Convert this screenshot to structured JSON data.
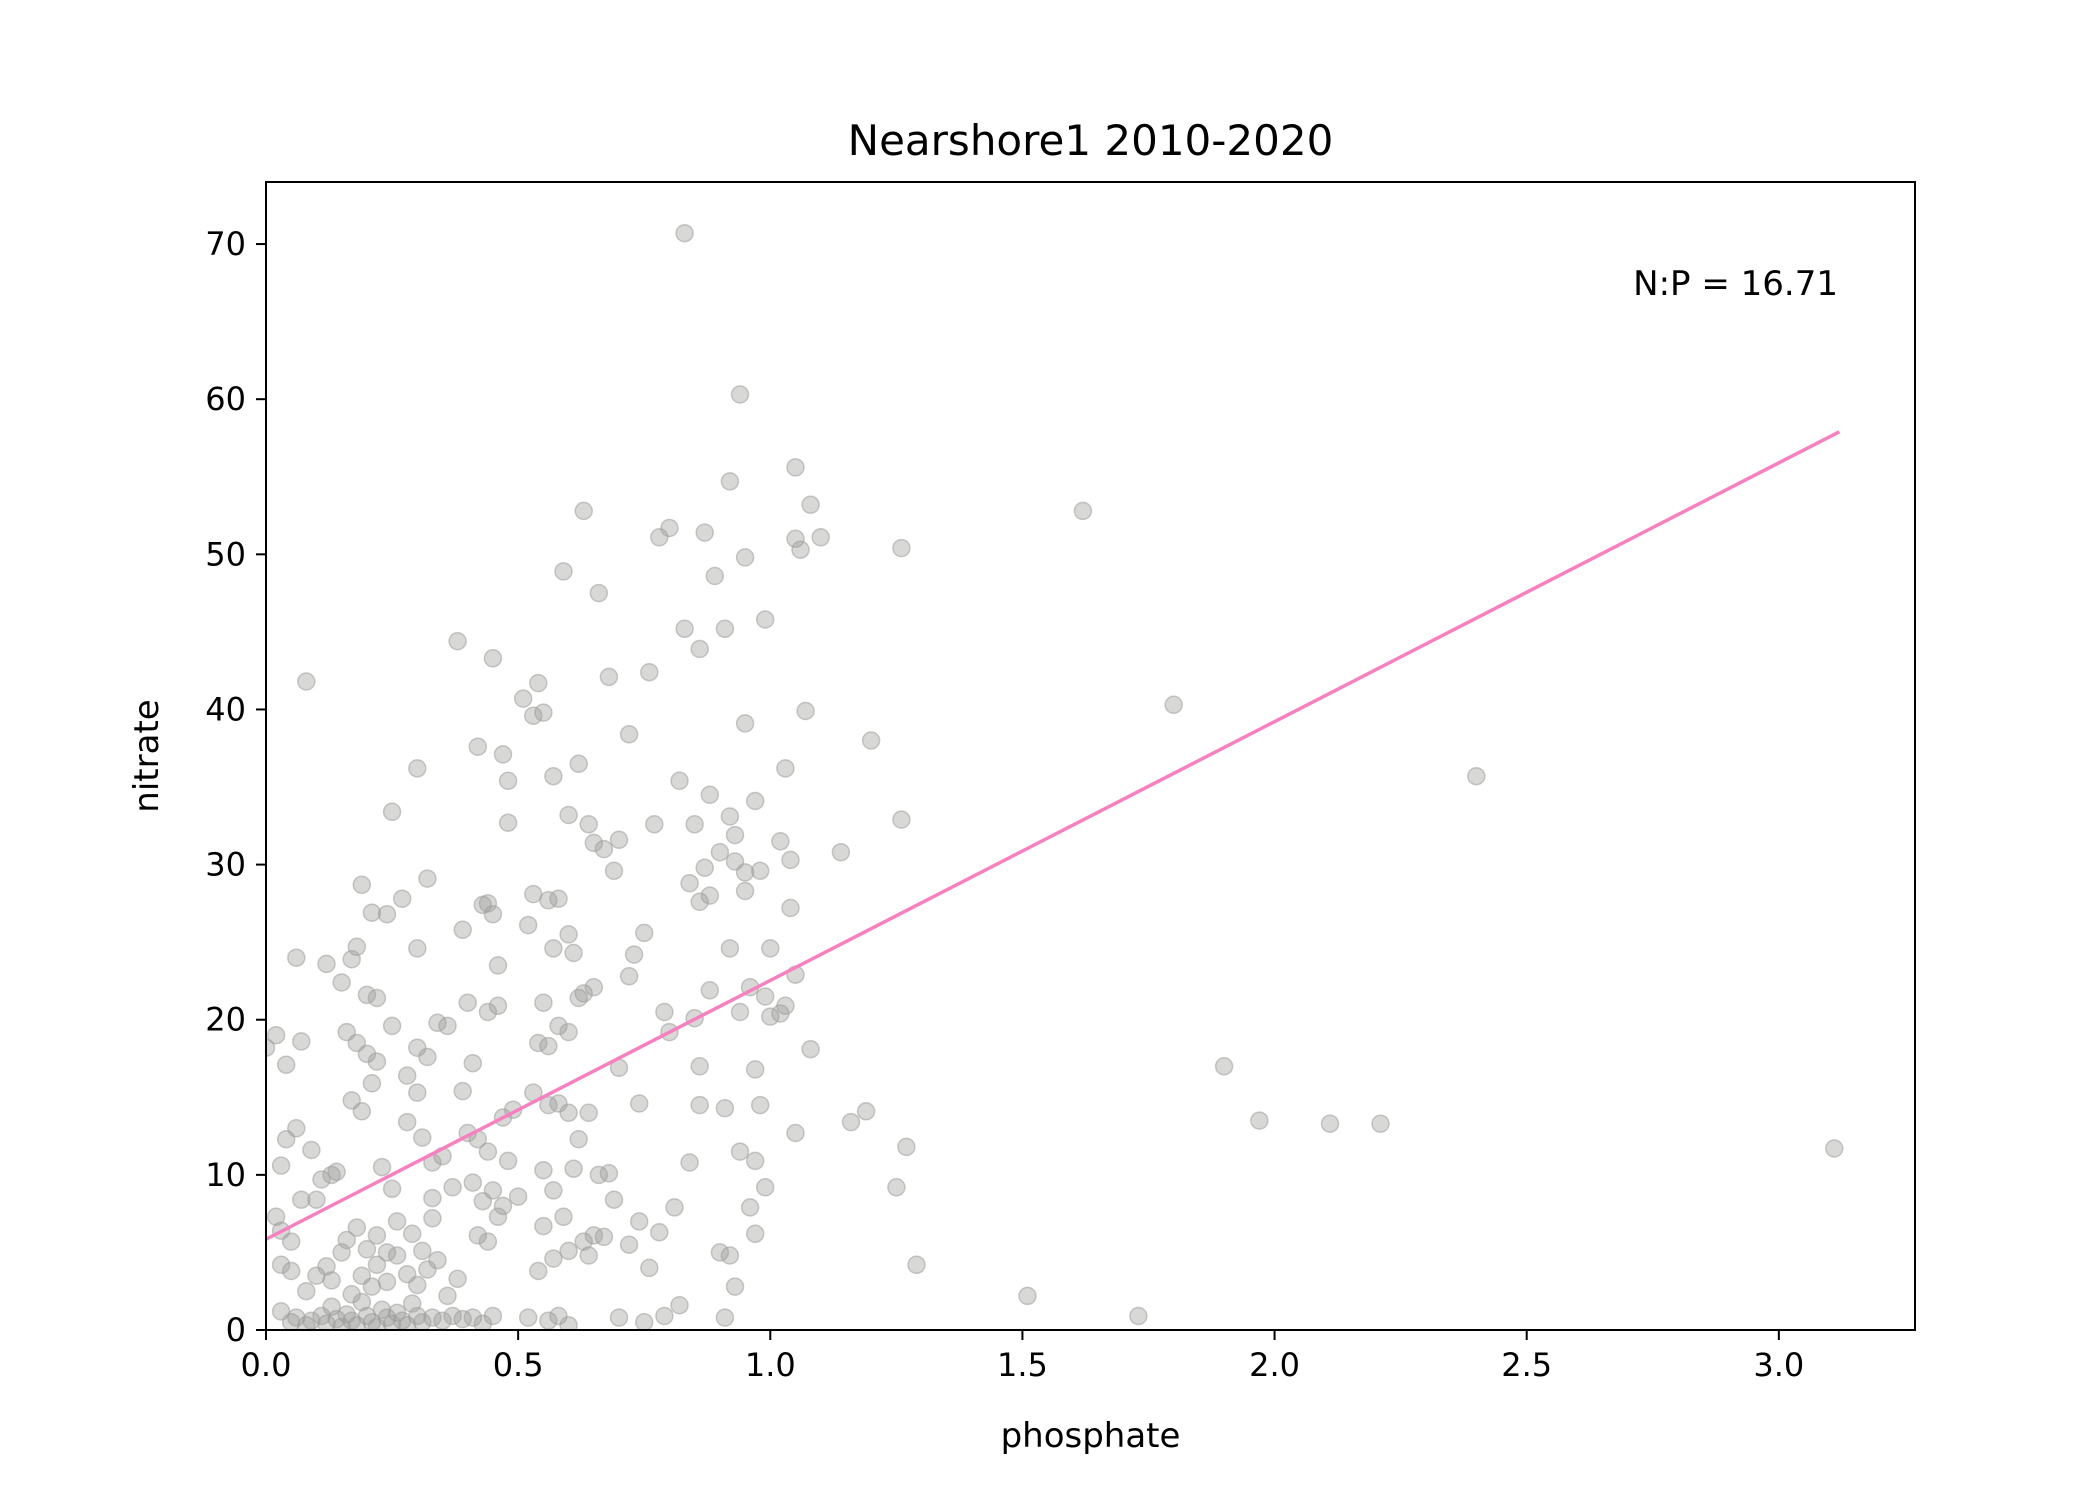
{
  "chart_data": {
    "type": "scatter",
    "title": "Nearshore1 2010-2020",
    "xlabel": "phosphate",
    "ylabel": "nitrate",
    "xlim": [
      0,
      3.27
    ],
    "ylim": [
      0,
      74
    ],
    "xticks": [
      0.0,
      0.5,
      1.0,
      1.5,
      2.0,
      2.5,
      3.0
    ],
    "xtick_labels": [
      "0.0",
      "0.5",
      "1.0",
      "1.5",
      "2.0",
      "2.5",
      "3.0"
    ],
    "yticks": [
      0,
      10,
      20,
      30,
      40,
      50,
      60,
      70
    ],
    "ytick_labels": [
      "0",
      "10",
      "20",
      "30",
      "40",
      "50",
      "60",
      "70"
    ],
    "annotation": "N:P = 16.71",
    "grid": false,
    "colors": {
      "points": "#9e9e9a",
      "fit_line": "#f781bf",
      "axes": "#000000"
    },
    "fit_line": {
      "slope": 16.71,
      "x_start": 0.0,
      "x_end": 3.12,
      "y_start": 5.85,
      "y_end": 57.9
    },
    "series": [
      {
        "type": "scatter",
        "points": [
          [
            0.0,
            18.2
          ],
          [
            0.02,
            19.0
          ],
          [
            0.04,
            17.1
          ],
          [
            0.06,
            24.0
          ],
          [
            0.08,
            41.8
          ],
          [
            0.07,
            18.6
          ],
          [
            0.03,
            10.6
          ],
          [
            0.04,
            12.3
          ],
          [
            0.06,
            13.0
          ],
          [
            0.09,
            11.6
          ],
          [
            0.02,
            7.3
          ],
          [
            0.03,
            6.4
          ],
          [
            0.05,
            5.7
          ],
          [
            0.07,
            8.4
          ],
          [
            0.1,
            8.4
          ],
          [
            0.11,
            9.7
          ],
          [
            0.13,
            10.0
          ],
          [
            0.14,
            10.2
          ],
          [
            0.03,
            4.2
          ],
          [
            0.05,
            3.8
          ],
          [
            0.08,
            2.5
          ],
          [
            0.1,
            3.5
          ],
          [
            0.12,
            4.1
          ],
          [
            0.13,
            3.2
          ],
          [
            0.15,
            5.0
          ],
          [
            0.03,
            1.2
          ],
          [
            0.05,
            0.5
          ],
          [
            0.06,
            0.8
          ],
          [
            0.08,
            0.3
          ],
          [
            0.09,
            0.6
          ],
          [
            0.11,
            0.9
          ],
          [
            0.12,
            0.4
          ],
          [
            0.13,
            1.5
          ],
          [
            0.14,
            0.7
          ],
          [
            0.15,
            0.2
          ],
          [
            0.16,
            1.0
          ],
          [
            0.17,
            0.6
          ],
          [
            0.18,
            0.3
          ],
          [
            0.19,
            1.8
          ],
          [
            0.2,
            0.9
          ],
          [
            0.21,
            0.5
          ],
          [
            0.22,
            0.2
          ],
          [
            0.23,
            1.3
          ],
          [
            0.24,
            0.8
          ],
          [
            0.25,
            0.4
          ],
          [
            0.26,
            1.1
          ],
          [
            0.27,
            0.6
          ],
          [
            0.28,
            0.3
          ],
          [
            0.29,
            1.7
          ],
          [
            0.3,
            0.9
          ],
          [
            0.31,
            0.5
          ],
          [
            0.33,
            0.8
          ],
          [
            0.35,
            0.6
          ],
          [
            0.37,
            0.9
          ],
          [
            0.39,
            0.7
          ],
          [
            0.41,
            0.8
          ],
          [
            0.43,
            0.4
          ],
          [
            0.45,
            0.9
          ],
          [
            0.17,
            2.3
          ],
          [
            0.19,
            3.5
          ],
          [
            0.21,
            2.8
          ],
          [
            0.22,
            4.2
          ],
          [
            0.24,
            3.1
          ],
          [
            0.26,
            4.8
          ],
          [
            0.28,
            3.6
          ],
          [
            0.3,
            2.9
          ],
          [
            0.32,
            3.9
          ],
          [
            0.34,
            4.5
          ],
          [
            0.36,
            2.2
          ],
          [
            0.38,
            3.3
          ],
          [
            0.16,
            5.8
          ],
          [
            0.18,
            6.6
          ],
          [
            0.2,
            5.2
          ],
          [
            0.22,
            6.1
          ],
          [
            0.24,
            5.0
          ],
          [
            0.26,
            7.0
          ],
          [
            0.29,
            6.2
          ],
          [
            0.31,
            5.1
          ],
          [
            0.33,
            7.2
          ],
          [
            0.12,
            23.6
          ],
          [
            0.15,
            22.4
          ],
          [
            0.17,
            23.9
          ],
          [
            0.18,
            24.7
          ],
          [
            0.2,
            21.6
          ],
          [
            0.22,
            21.4
          ],
          [
            0.16,
            19.2
          ],
          [
            0.18,
            18.5
          ],
          [
            0.2,
            17.8
          ],
          [
            0.22,
            17.3
          ],
          [
            0.17,
            14.8
          ],
          [
            0.19,
            14.1
          ],
          [
            0.21,
            15.9
          ],
          [
            0.23,
            10.5
          ],
          [
            0.25,
            9.1
          ],
          [
            0.19,
            28.7
          ],
          [
            0.21,
            26.9
          ],
          [
            0.24,
            26.8
          ],
          [
            0.27,
            27.8
          ],
          [
            0.25,
            33.4
          ],
          [
            0.3,
            36.2
          ],
          [
            0.32,
            29.1
          ],
          [
            0.3,
            24.6
          ],
          [
            0.34,
            19.8
          ],
          [
            0.36,
            19.6
          ],
          [
            0.25,
            19.6
          ],
          [
            0.28,
            16.4
          ],
          [
            0.3,
            18.2
          ],
          [
            0.32,
            17.6
          ],
          [
            0.3,
            15.3
          ],
          [
            0.28,
            13.4
          ],
          [
            0.31,
            12.4
          ],
          [
            0.33,
            10.8
          ],
          [
            0.35,
            11.2
          ],
          [
            0.33,
            8.5
          ],
          [
            0.37,
            9.2
          ],
          [
            0.38,
            44.4
          ],
          [
            0.39,
            25.8
          ],
          [
            0.42,
            37.6
          ],
          [
            0.43,
            27.4
          ],
          [
            0.45,
            43.3
          ],
          [
            0.44,
            27.5
          ],
          [
            0.46,
            23.5
          ],
          [
            0.47,
            37.1
          ],
          [
            0.48,
            35.4
          ],
          [
            0.48,
            32.7
          ],
          [
            0.45,
            26.8
          ],
          [
            0.4,
            21.1
          ],
          [
            0.44,
            20.5
          ],
          [
            0.46,
            20.9
          ],
          [
            0.41,
            17.2
          ],
          [
            0.39,
            15.4
          ],
          [
            0.4,
            12.7
          ],
          [
            0.42,
            12.3
          ],
          [
            0.44,
            11.5
          ],
          [
            0.47,
            13.7
          ],
          [
            0.49,
            14.2
          ],
          [
            0.41,
            9.5
          ],
          [
            0.43,
            8.3
          ],
          [
            0.45,
            9.0
          ],
          [
            0.48,
            10.9
          ],
          [
            0.47,
            8.0
          ],
          [
            0.42,
            6.1
          ],
          [
            0.44,
            5.7
          ],
          [
            0.46,
            7.3
          ],
          [
            0.5,
            8.6
          ],
          [
            0.51,
            40.7
          ],
          [
            0.54,
            41.7
          ],
          [
            0.55,
            39.8
          ],
          [
            0.53,
            39.6
          ],
          [
            0.57,
            35.7
          ],
          [
            0.6,
            33.2
          ],
          [
            0.62,
            36.5
          ],
          [
            0.64,
            32.6
          ],
          [
            0.65,
            31.4
          ],
          [
            0.67,
            31.0
          ],
          [
            0.63,
            52.8
          ],
          [
            0.59,
            48.9
          ],
          [
            0.66,
            47.5
          ],
          [
            0.53,
            28.1
          ],
          [
            0.56,
            27.7
          ],
          [
            0.58,
            27.8
          ],
          [
            0.6,
            25.5
          ],
          [
            0.57,
            24.6
          ],
          [
            0.52,
            26.1
          ],
          [
            0.55,
            21.1
          ],
          [
            0.58,
            19.6
          ],
          [
            0.62,
            21.4
          ],
          [
            0.63,
            21.7
          ],
          [
            0.61,
            24.3
          ],
          [
            0.65,
            22.1
          ],
          [
            0.56,
            18.3
          ],
          [
            0.54,
            18.5
          ],
          [
            0.6,
            19.2
          ],
          [
            0.56,
            14.5
          ],
          [
            0.53,
            15.3
          ],
          [
            0.58,
            14.6
          ],
          [
            0.6,
            14.0
          ],
          [
            0.62,
            12.3
          ],
          [
            0.64,
            14.0
          ],
          [
            0.66,
            10.0
          ],
          [
            0.55,
            10.3
          ],
          [
            0.57,
            9.0
          ],
          [
            0.59,
            7.3
          ],
          [
            0.61,
            10.4
          ],
          [
            0.63,
            5.7
          ],
          [
            0.65,
            6.1
          ],
          [
            0.67,
            6.0
          ],
          [
            0.55,
            6.7
          ],
          [
            0.57,
            4.6
          ],
          [
            0.6,
            5.1
          ],
          [
            0.64,
            4.8
          ],
          [
            0.54,
            3.8
          ],
          [
            0.52,
            0.8
          ],
          [
            0.56,
            0.6
          ],
          [
            0.58,
            0.9
          ],
          [
            0.6,
            0.3
          ],
          [
            0.69,
            29.6
          ],
          [
            0.7,
            31.6
          ],
          [
            0.72,
            38.4
          ],
          [
            0.76,
            42.4
          ],
          [
            0.68,
            42.1
          ],
          [
            0.75,
            25.6
          ],
          [
            0.77,
            32.6
          ],
          [
            0.73,
            24.2
          ],
          [
            0.72,
            22.8
          ],
          [
            0.79,
            20.5
          ],
          [
            0.8,
            19.2
          ],
          [
            0.7,
            16.9
          ],
          [
            0.74,
            14.6
          ],
          [
            0.68,
            10.1
          ],
          [
            0.69,
            8.4
          ],
          [
            0.72,
            5.5
          ],
          [
            0.74,
            7.0
          ],
          [
            0.76,
            4.0
          ],
          [
            0.78,
            6.3
          ],
          [
            0.81,
            7.9
          ],
          [
            0.7,
            0.8
          ],
          [
            0.75,
            0.5
          ],
          [
            0.79,
            0.9
          ],
          [
            0.82,
            1.6
          ],
          [
            0.78,
            51.1
          ],
          [
            0.8,
            51.7
          ],
          [
            0.83,
            45.2
          ],
          [
            0.86,
            43.9
          ],
          [
            0.87,
            51.4
          ],
          [
            0.89,
            48.6
          ],
          [
            0.91,
            45.2
          ],
          [
            0.92,
            54.7
          ],
          [
            0.95,
            49.8
          ],
          [
            0.83,
            70.7
          ],
          [
            0.94,
            60.3
          ],
          [
            0.82,
            35.4
          ],
          [
            0.85,
            32.6
          ],
          [
            0.87,
            29.8
          ],
          [
            0.88,
            34.5
          ],
          [
            0.9,
            30.8
          ],
          [
            0.92,
            33.1
          ],
          [
            0.93,
            31.9
          ],
          [
            0.95,
            29.5
          ],
          [
            0.84,
            28.8
          ],
          [
            0.86,
            27.6
          ],
          [
            0.88,
            28.0
          ],
          [
            0.93,
            30.2
          ],
          [
            0.95,
            28.3
          ],
          [
            0.98,
            29.6
          ],
          [
            0.97,
            34.1
          ],
          [
            0.95,
            39.1
          ],
          [
            0.99,
            45.8
          ],
          [
            0.92,
            24.6
          ],
          [
            0.96,
            22.1
          ],
          [
            0.99,
            21.5
          ],
          [
            1.0,
            20.2
          ],
          [
            0.94,
            20.5
          ],
          [
            0.88,
            21.9
          ],
          [
            0.85,
            20.1
          ],
          [
            0.86,
            17.0
          ],
          [
            0.91,
            14.3
          ],
          [
            0.97,
            16.8
          ],
          [
            0.98,
            14.5
          ],
          [
            0.86,
            14.5
          ],
          [
            0.84,
            10.8
          ],
          [
            0.94,
            11.5
          ],
          [
            0.97,
            10.9
          ],
          [
            0.99,
            9.2
          ],
          [
            0.96,
            7.9
          ],
          [
            0.97,
            6.2
          ],
          [
            0.9,
            5.0
          ],
          [
            0.92,
            4.8
          ],
          [
            0.93,
            2.8
          ],
          [
            0.91,
            0.8
          ],
          [
            1.0,
            24.6
          ],
          [
            1.02,
            20.4
          ],
          [
            1.03,
            20.9
          ],
          [
            1.05,
            22.9
          ],
          [
            1.04,
            27.2
          ],
          [
            1.04,
            30.3
          ],
          [
            1.02,
            31.5
          ],
          [
            1.03,
            36.2
          ],
          [
            1.07,
            39.9
          ],
          [
            1.05,
            55.6
          ],
          [
            1.08,
            53.2
          ],
          [
            1.05,
            51.0
          ],
          [
            1.06,
            50.3
          ],
          [
            1.1,
            51.1
          ],
          [
            1.14,
            30.8
          ],
          [
            1.2,
            38.0
          ],
          [
            1.08,
            18.1
          ],
          [
            1.05,
            12.7
          ],
          [
            1.16,
            13.4
          ],
          [
            1.19,
            14.1
          ],
          [
            1.25,
            9.2
          ],
          [
            1.27,
            11.8
          ],
          [
            1.29,
            4.2
          ],
          [
            1.26,
            32.9
          ],
          [
            1.26,
            50.4
          ],
          [
            1.51,
            2.2
          ],
          [
            1.62,
            52.8
          ],
          [
            1.73,
            0.9
          ],
          [
            1.8,
            40.3
          ],
          [
            1.9,
            17.0
          ],
          [
            1.97,
            13.5
          ],
          [
            2.11,
            13.3
          ],
          [
            2.21,
            13.3
          ],
          [
            2.4,
            35.7
          ],
          [
            3.11,
            11.7
          ]
        ]
      }
    ]
  }
}
